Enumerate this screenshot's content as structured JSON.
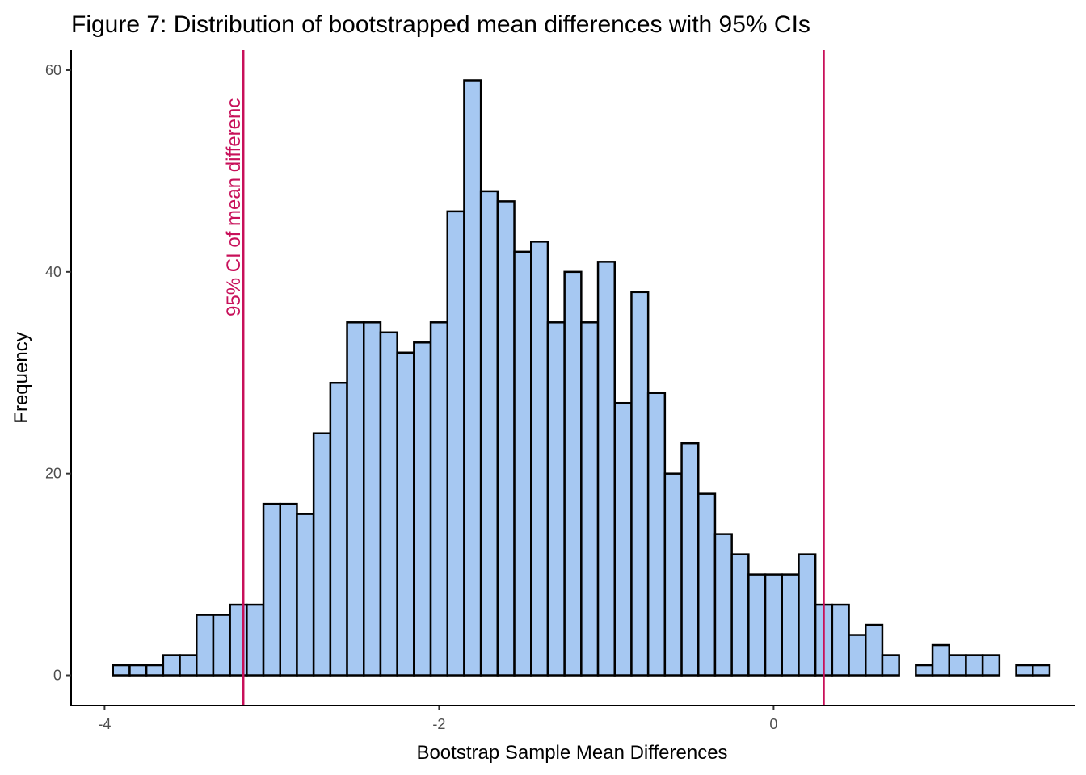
{
  "chart_data": {
    "type": "histogram",
    "title": "Figure 7: Distribution of bootstrapped mean differences with 95% CIs",
    "xlabel": "Bootstrap Sample Mean Differences",
    "ylabel": "Frequency",
    "xlim": [
      -4.2,
      1.8
    ],
    "ylim": [
      -3,
      62
    ],
    "x_ticks": [
      -4,
      -2,
      0
    ],
    "x_tick_labels": [
      "-4",
      "-2",
      "0"
    ],
    "y_ticks": [
      0,
      20,
      40,
      60
    ],
    "y_tick_labels": [
      "0",
      "20",
      "40",
      "60"
    ],
    "bin_start": -3.95,
    "bin_width": 0.1,
    "counts": [
      1,
      1,
      1,
      2,
      2,
      6,
      6,
      7,
      7,
      17,
      17,
      16,
      24,
      29,
      35,
      35,
      34,
      32,
      33,
      35,
      46,
      59,
      48,
      47,
      42,
      43,
      35,
      40,
      35,
      41,
      27,
      38,
      28,
      20,
      23,
      18,
      14,
      12,
      10,
      10,
      10,
      12,
      7,
      7,
      4,
      5,
      2,
      0,
      1,
      3,
      2,
      2,
      2,
      0,
      1,
      1
    ],
    "ci_lower": -3.17,
    "ci_upper": 0.3,
    "ci_label": "95% CI of mean differenc",
    "bar_fill": "#A6C8F2",
    "bar_stroke": "#000000",
    "ci_color": "#C8105A",
    "grid": false
  }
}
